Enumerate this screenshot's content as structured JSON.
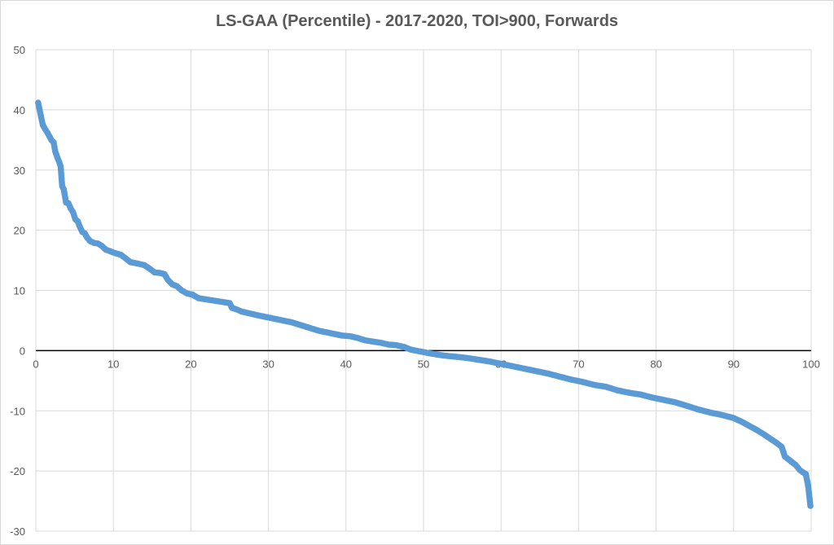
{
  "chart_data": {
    "type": "scatter",
    "title": "LS-GAA (Percentile) - 2017-2020, TOI>900, Forwards",
    "xlabel": "",
    "ylabel": "",
    "xlim": [
      0,
      100
    ],
    "ylim": [
      -30,
      50
    ],
    "x_ticks": [
      0,
      10,
      20,
      30,
      40,
      50,
      60,
      70,
      80,
      90,
      100
    ],
    "y_ticks": [
      -30,
      -20,
      -10,
      0,
      10,
      20,
      30,
      40,
      50
    ],
    "grid": true,
    "legend": "none",
    "series": [
      {
        "color": "#5b9bd5",
        "curve": [
          [
            0.3,
            41.2
          ],
          [
            0.6,
            39.3
          ],
          [
            0.9,
            37.5
          ],
          [
            1.2,
            36.8
          ],
          [
            1.5,
            36.2
          ],
          [
            1.8,
            35.5
          ],
          [
            2.0,
            35.0
          ],
          [
            2.3,
            34.6
          ],
          [
            2.5,
            33.1
          ],
          [
            2.8,
            32.0
          ],
          [
            3.0,
            31.4
          ],
          [
            3.2,
            30.6
          ],
          [
            3.4,
            27.3
          ],
          [
            3.6,
            26.8
          ],
          [
            3.9,
            24.6
          ],
          [
            4.2,
            24.5
          ],
          [
            4.5,
            23.6
          ],
          [
            4.8,
            23.0
          ],
          [
            5.1,
            21.8
          ],
          [
            5.4,
            21.5
          ],
          [
            5.7,
            20.5
          ],
          [
            6.0,
            19.7
          ],
          [
            6.3,
            19.5
          ],
          [
            6.6,
            18.8
          ],
          [
            7.0,
            18.2
          ],
          [
            7.5,
            17.9
          ],
          [
            8.0,
            17.8
          ],
          [
            8.5,
            17.4
          ],
          [
            9.0,
            16.8
          ],
          [
            10.0,
            16.3
          ],
          [
            11.0,
            15.9
          ],
          [
            11.6,
            15.3
          ],
          [
            12.2,
            14.7
          ],
          [
            13.0,
            14.5
          ],
          [
            14.0,
            14.2
          ],
          [
            14.8,
            13.5
          ],
          [
            15.3,
            13.0
          ],
          [
            16.0,
            12.9
          ],
          [
            16.6,
            12.7
          ],
          [
            17.0,
            11.8
          ],
          [
            17.6,
            11.0
          ],
          [
            18.2,
            10.7
          ],
          [
            18.8,
            10.0
          ],
          [
            19.5,
            9.5
          ],
          [
            20.2,
            9.3
          ],
          [
            21.0,
            8.7
          ],
          [
            22.0,
            8.5
          ],
          [
            23.0,
            8.3
          ],
          [
            24.0,
            8.1
          ],
          [
            25.0,
            7.9
          ],
          [
            25.3,
            7.1
          ],
          [
            26.0,
            6.8
          ],
          [
            26.5,
            6.5
          ],
          [
            27.5,
            6.2
          ],
          [
            28.5,
            5.9
          ],
          [
            30.0,
            5.5
          ],
          [
            31.5,
            5.1
          ],
          [
            33.0,
            4.7
          ],
          [
            34.5,
            4.1
          ],
          [
            35.5,
            3.7
          ],
          [
            36.5,
            3.3
          ],
          [
            38.0,
            2.9
          ],
          [
            39.5,
            2.5
          ],
          [
            40.5,
            2.4
          ],
          [
            41.5,
            2.1
          ],
          [
            42.5,
            1.7
          ],
          [
            43.5,
            1.5
          ],
          [
            44.5,
            1.3
          ],
          [
            45.5,
            1.0
          ],
          [
            46.5,
            0.9
          ],
          [
            47.5,
            0.6
          ],
          [
            48.3,
            0.2
          ],
          [
            49.0,
            0.0
          ],
          [
            49.8,
            -0.2
          ],
          [
            51.0,
            -0.5
          ],
          [
            52.5,
            -0.8
          ],
          [
            54.0,
            -1.0
          ],
          [
            55.5,
            -1.2
          ],
          [
            57.0,
            -1.5
          ],
          [
            58.5,
            -1.8
          ],
          [
            60.0,
            -2.2
          ],
          [
            61.5,
            -2.6
          ],
          [
            63.0,
            -3.0
          ],
          [
            64.5,
            -3.4
          ],
          [
            66.0,
            -3.8
          ],
          [
            67.5,
            -4.3
          ],
          [
            69.0,
            -4.8
          ],
          [
            70.5,
            -5.2
          ],
          [
            72.0,
            -5.7
          ],
          [
            73.5,
            -6.0
          ],
          [
            75.0,
            -6.6
          ],
          [
            76.5,
            -7.0
          ],
          [
            78.0,
            -7.3
          ],
          [
            79.5,
            -7.8
          ],
          [
            81.0,
            -8.2
          ],
          [
            82.5,
            -8.6
          ],
          [
            84.0,
            -9.2
          ],
          [
            85.5,
            -9.8
          ],
          [
            87.0,
            -10.3
          ],
          [
            88.5,
            -10.7
          ],
          [
            90.0,
            -11.2
          ],
          [
            91.0,
            -11.8
          ],
          [
            92.0,
            -12.5
          ],
          [
            93.0,
            -13.2
          ],
          [
            94.0,
            -14.0
          ],
          [
            94.8,
            -14.7
          ],
          [
            95.5,
            -15.3
          ],
          [
            96.2,
            -16.0
          ],
          [
            96.6,
            -17.6
          ],
          [
            97.0,
            -18.0
          ],
          [
            97.5,
            -18.5
          ],
          [
            98.0,
            -19.0
          ],
          [
            98.5,
            -19.8
          ],
          [
            98.9,
            -20.2
          ],
          [
            99.3,
            -20.5
          ],
          [
            99.6,
            -22.4
          ],
          [
            99.9,
            -25.8
          ]
        ]
      }
    ]
  }
}
